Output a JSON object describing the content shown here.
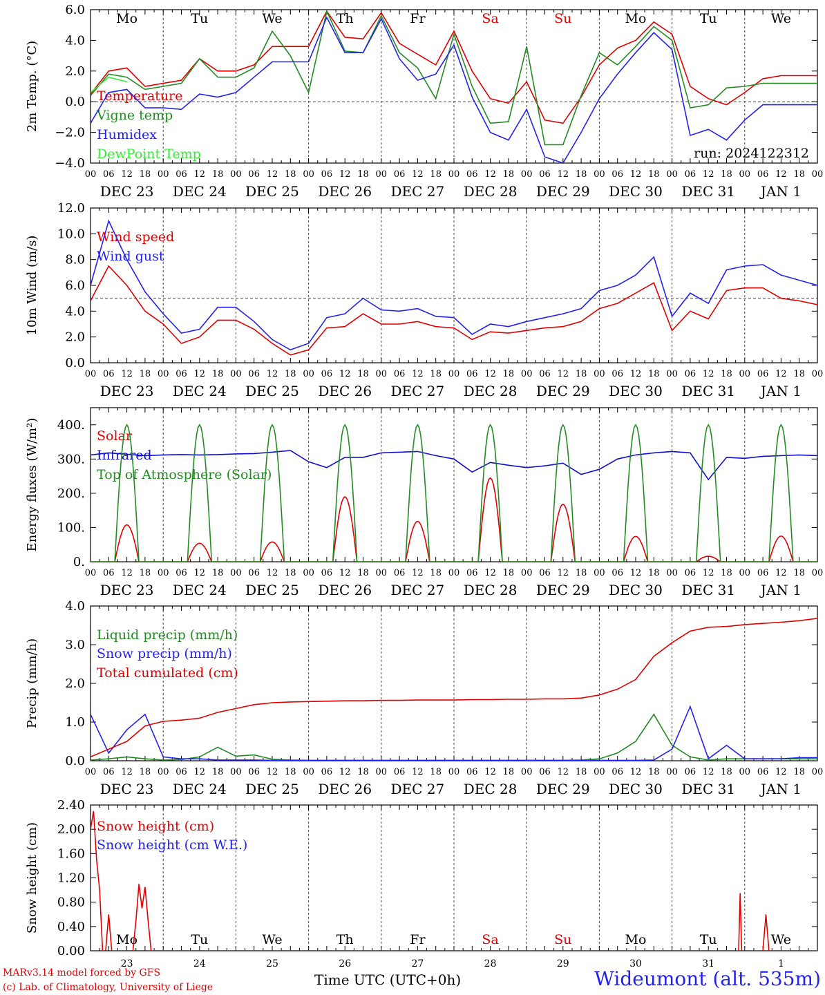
{
  "chart_data": [
    {
      "type": "line",
      "ylabel": "2m Temp. (°C)",
      "ylim": [
        -4,
        6
      ],
      "yticks": [
        "6.0",
        "4.0",
        "2.0",
        "0.0",
        "−2.0",
        "−4.0"
      ],
      "ytick_values": [
        6,
        4,
        2,
        0,
        -2,
        -4
      ],
      "reference_line": 0,
      "weekdays": [
        {
          "label": "Mo",
          "color": "#000000"
        },
        {
          "label": "Tu",
          "color": "#000000"
        },
        {
          "label": "We",
          "color": "#000000"
        },
        {
          "label": "Th",
          "color": "#000000"
        },
        {
          "label": "Fr",
          "color": "#000000"
        },
        {
          "label": "Sa",
          "color": "#e00000"
        },
        {
          "label": "Su",
          "color": "#e00000"
        },
        {
          "label": "Mo",
          "color": "#000000"
        },
        {
          "label": "Tu",
          "color": "#000000"
        },
        {
          "label": "We",
          "color": "#000000"
        }
      ],
      "annotation": "run: 2024122312",
      "x_hours": [
        0,
        6,
        12,
        18,
        24,
        30,
        36,
        42,
        48,
        54,
        60,
        66,
        72,
        78,
        84,
        90,
        96,
        102,
        108,
        114,
        120,
        126,
        132,
        138,
        144,
        150,
        156,
        162,
        168,
        174,
        180,
        186,
        192,
        198,
        204,
        210,
        216,
        222,
        228,
        234,
        240
      ],
      "series": [
        {
          "name": "Temperature",
          "color": "#e00000",
          "values": [
            0.5,
            2.0,
            2.2,
            1.0,
            1.2,
            1.4,
            2.8,
            2.0,
            2.0,
            2.4,
            3.6,
            3.6,
            3.6,
            5.9,
            4.2,
            4.1,
            5.8,
            3.8,
            3.1,
            2.4,
            4.6,
            2.0,
            0.2,
            -0.1,
            1.3,
            -1.2,
            -1.4,
            0.3,
            2.4,
            3.5,
            4.0,
            5.2,
            4.4,
            1.0,
            0.2,
            -0.2,
            0.6,
            1.5,
            1.7,
            1.7,
            1.7
          ]
        },
        {
          "name": "Vigne temp",
          "color": "#228b22",
          "values": [
            0.4,
            1.8,
            1.6,
            0.8,
            1.0,
            1.2,
            2.8,
            1.6,
            1.6,
            2.2,
            4.6,
            3.0,
            0.6,
            5.9,
            3.3,
            3.2,
            5.6,
            3.2,
            2.2,
            0.2,
            4.4,
            1.0,
            -1.4,
            -1.3,
            3.6,
            -2.8,
            -2.8,
            0.4,
            3.2,
            2.4,
            3.6,
            4.9,
            4.0,
            -0.4,
            -0.2,
            0.9,
            1.0,
            1.2,
            1.2,
            1.2,
            1.2
          ]
        },
        {
          "name": "Humidex",
          "color": "#2222ee",
          "values": [
            -1.4,
            0.6,
            0.8,
            -0.4,
            -0.4,
            -0.5,
            0.5,
            0.3,
            0.6,
            1.6,
            2.6,
            2.6,
            2.6,
            5.5,
            3.2,
            3.2,
            5.4,
            2.8,
            1.4,
            1.8,
            3.7,
            0.3,
            -2.0,
            -2.5,
            -0.5,
            -3.6,
            -4.0,
            -2.0,
            0.2,
            1.8,
            3.2,
            4.5,
            3.4,
            -2.2,
            -1.8,
            -2.5,
            -1.2,
            -0.2,
            -0.2,
            -0.2,
            -0.2
          ]
        },
        {
          "name": "DewPoint Temp",
          "color": "#33ee33",
          "values": [
            0.6,
            1.6,
            1.3,
            null,
            null,
            null,
            null,
            null,
            null,
            null,
            null,
            null,
            null,
            null,
            null,
            null,
            null,
            null,
            null,
            null,
            null,
            null,
            null,
            null,
            null,
            null,
            null,
            null,
            null,
            null,
            null,
            null,
            null,
            null,
            null,
            null,
            null,
            null,
            null,
            null,
            null
          ]
        }
      ]
    },
    {
      "type": "line",
      "ylabel": "10m Wind (m/s)",
      "ylim": [
        0,
        12
      ],
      "yticks": [
        "12.0",
        "10.0",
        "8.0",
        "6.0",
        "4.0",
        "2.0",
        "0.0"
      ],
      "ytick_values": [
        12,
        10,
        8,
        6,
        4,
        2,
        0
      ],
      "reference_line": 5,
      "x_hours": [
        0,
        6,
        12,
        18,
        24,
        30,
        36,
        42,
        48,
        54,
        60,
        66,
        72,
        78,
        84,
        90,
        96,
        102,
        108,
        114,
        120,
        126,
        132,
        138,
        144,
        150,
        156,
        162,
        168,
        174,
        180,
        186,
        192,
        198,
        204,
        210,
        216,
        222,
        228,
        234,
        240
      ],
      "series": [
        {
          "name": "Wind speed",
          "color": "#e00000",
          "values": [
            4.8,
            7.5,
            6.0,
            4.0,
            3.0,
            1.5,
            2.0,
            3.3,
            3.3,
            2.6,
            1.5,
            0.6,
            1.0,
            2.7,
            2.8,
            3.8,
            3.0,
            3.0,
            3.2,
            2.8,
            2.7,
            1.8,
            2.4,
            2.3,
            2.5,
            2.7,
            2.8,
            3.2,
            4.2,
            4.6,
            5.4,
            6.2,
            2.5,
            4.0,
            3.4,
            5.6,
            5.8,
            5.8,
            5.0,
            4.8,
            4.5
          ]
        },
        {
          "name": "Wind gust",
          "color": "#2222ee",
          "values": [
            6.0,
            11.0,
            8.0,
            5.5,
            3.8,
            2.3,
            2.6,
            4.3,
            4.3,
            3.2,
            1.8,
            1.0,
            1.5,
            3.5,
            3.8,
            5.0,
            4.1,
            4.0,
            4.2,
            3.6,
            3.5,
            2.2,
            3.0,
            2.8,
            3.2,
            3.5,
            3.8,
            4.2,
            5.6,
            6.0,
            6.8,
            8.2,
            3.6,
            5.4,
            4.6,
            7.2,
            7.5,
            7.6,
            6.8,
            6.4,
            6.0
          ]
        }
      ]
    },
    {
      "type": "line",
      "ylabel": "Energy fluxes (W/m²)",
      "ylim": [
        0,
        450
      ],
      "yticks": [
        "400.",
        "300.",
        "200.",
        "100.",
        "0."
      ],
      "ytick_values": [
        400,
        300,
        200,
        100,
        0
      ],
      "daily_peaks": {
        "Solar": [
          108,
          54,
          58,
          190,
          118,
          245,
          168,
          74,
          16,
          75
        ],
        "Top of Atmosphere (Solar)": [
          400,
          400,
          400,
          400,
          400,
          400,
          400,
          400,
          400,
          400
        ]
      },
      "series": [
        {
          "name": "Solar",
          "color": "#e00000"
        },
        {
          "name": "Infrared",
          "color": "#1010cc",
          "x_hours": [
            0,
            6,
            12,
            18,
            24,
            30,
            36,
            42,
            48,
            54,
            60,
            66,
            72,
            78,
            84,
            90,
            96,
            102,
            108,
            114,
            120,
            126,
            132,
            138,
            144,
            150,
            156,
            162,
            168,
            174,
            180,
            186,
            192,
            198,
            204,
            210,
            216,
            222,
            228,
            234,
            240
          ],
          "values": [
            312,
            318,
            314,
            310,
            312,
            313,
            312,
            313,
            315,
            316,
            320,
            325,
            292,
            275,
            305,
            305,
            318,
            320,
            322,
            310,
            300,
            262,
            290,
            282,
            275,
            280,
            288,
            255,
            270,
            300,
            312,
            318,
            322,
            318,
            240,
            305,
            302,
            308,
            310,
            312,
            310
          ]
        },
        {
          "name": "Top of Atmosphere (Solar)",
          "color": "#228b22"
        }
      ]
    },
    {
      "type": "line",
      "ylabel": "Precip (mm/h)",
      "ylim": [
        0,
        4
      ],
      "yticks": [
        "4.0",
        "3.0",
        "2.0",
        "1.0",
        "0.0"
      ],
      "ytick_values": [
        4,
        3,
        2,
        1,
        0
      ],
      "x_hours": [
        0,
        6,
        12,
        18,
        24,
        30,
        36,
        42,
        48,
        54,
        60,
        66,
        72,
        78,
        84,
        90,
        96,
        102,
        108,
        114,
        120,
        126,
        132,
        138,
        144,
        150,
        156,
        162,
        168,
        174,
        180,
        186,
        192,
        198,
        204,
        210,
        216,
        222,
        228,
        234,
        240
      ],
      "series": [
        {
          "name": "Liquid precip (mm/h)",
          "color": "#228b22",
          "values": [
            0.02,
            0.05,
            0.1,
            0.05,
            0.02,
            0.03,
            0.1,
            0.35,
            0.12,
            0.15,
            0.04,
            0.02,
            0.01,
            0.01,
            0.01,
            0.01,
            0.01,
            0.01,
            0.01,
            0.01,
            0.01,
            0.01,
            0.01,
            0.01,
            0.01,
            0.01,
            0.01,
            0.02,
            0.05,
            0.2,
            0.5,
            1.2,
            0.4,
            0.1,
            0.02,
            0.05,
            0.05,
            0.05,
            0.05,
            0.05,
            0.05
          ]
        },
        {
          "name": "Snow precip (mm/h)",
          "color": "#2222ee",
          "values": [
            1.2,
            0.2,
            0.8,
            1.2,
            0.1,
            0.05,
            0.05,
            0.02,
            0.02,
            0.02,
            0.01,
            0.01,
            0.01,
            0.01,
            0.01,
            0.01,
            0.01,
            0.01,
            0.01,
            0.01,
            0.01,
            0.01,
            0.01,
            0.01,
            0.01,
            0.01,
            0.01,
            0.01,
            0.01,
            0.01,
            0.01,
            0.02,
            0.3,
            1.4,
            0.05,
            0.4,
            0.05,
            0.05,
            0.05,
            0.08,
            0.08
          ]
        },
        {
          "name": "Total cumulated (cm)",
          "color": "#e00000",
          "values": [
            0.1,
            0.3,
            0.5,
            0.9,
            1.02,
            1.05,
            1.1,
            1.25,
            1.35,
            1.45,
            1.5,
            1.52,
            1.53,
            1.54,
            1.55,
            1.55,
            1.56,
            1.56,
            1.57,
            1.57,
            1.57,
            1.58,
            1.58,
            1.59,
            1.59,
            1.6,
            1.6,
            1.62,
            1.7,
            1.85,
            2.1,
            2.7,
            3.05,
            3.35,
            3.45,
            3.47,
            3.52,
            3.55,
            3.58,
            3.62,
            3.68
          ]
        }
      ]
    },
    {
      "type": "line",
      "ylabel": "Snow height (cm)",
      "ylim": [
        0,
        2.4
      ],
      "yticks": [
        "2.40",
        "2.00",
        "1.60",
        "1.20",
        "0.80",
        "0.40",
        "0.00"
      ],
      "ytick_values": [
        2.4,
        2.0,
        1.6,
        1.2,
        0.8,
        0.4,
        0.0
      ],
      "weekdays": [
        {
          "label": "Mo",
          "color": "#000000"
        },
        {
          "label": "Tu",
          "color": "#000000"
        },
        {
          "label": "We",
          "color": "#000000"
        },
        {
          "label": "Th",
          "color": "#000000"
        },
        {
          "label": "Fr",
          "color": "#000000"
        },
        {
          "label": "Sa",
          "color": "#e00000"
        },
        {
          "label": "Su",
          "color": "#e00000"
        },
        {
          "label": "Mo",
          "color": "#000000"
        },
        {
          "label": "Tu",
          "color": "#000000"
        },
        {
          "label": "We",
          "color": "#000000"
        }
      ],
      "day_numbers": [
        "23",
        "24",
        "25",
        "26",
        "27",
        "28",
        "29",
        "30",
        "31",
        "1"
      ],
      "series": [
        {
          "name": "Snow height (cm)",
          "color": "#e00000",
          "x_hours": [
            0,
            1,
            2,
            3,
            4,
            5,
            6,
            7,
            8,
            9,
            10,
            11,
            12,
            14,
            15,
            16,
            17,
            18,
            19,
            20,
            21,
            22,
            23,
            200,
            202,
            203,
            204,
            214,
            214.5,
            215,
            222,
            223,
            224,
            225,
            240
          ],
          "values": [
            2.0,
            2.3,
            1.5,
            1.0,
            0.0,
            0.0,
            0.6,
            0.0,
            0.0,
            0.0,
            0.0,
            0.0,
            0.0,
            0.0,
            0.5,
            1.1,
            0.7,
            1.05,
            0.5,
            0.0,
            0.0,
            0.0,
            0.0,
            0.0,
            0.0,
            0.0,
            0.0,
            0.0,
            0.95,
            0.0,
            0.0,
            0.6,
            0.0,
            0.0,
            0.0
          ]
        },
        {
          "name": "Snow height (cm W.E.)",
          "color": "#2222ee",
          "values": []
        }
      ]
    }
  ],
  "x_axis": {
    "hour_labels": [
      "00",
      "06",
      "12",
      "18"
    ],
    "last_hour_label": "00",
    "day_labels": [
      "DEC 23",
      "DEC 24",
      "DEC 25",
      "DEC 26",
      "DEC 27",
      "DEC 28",
      "DEC 29",
      "DEC 30",
      "DEC 31",
      "JAN  1"
    ],
    "title": "Time UTC (UTC+0h)"
  },
  "footer": {
    "line1": "MARv3.14 model forced by GFS",
    "line2": "(c) Lab. of Climatology, University of Liege",
    "station": "Wideumont (alt. 535m)"
  }
}
